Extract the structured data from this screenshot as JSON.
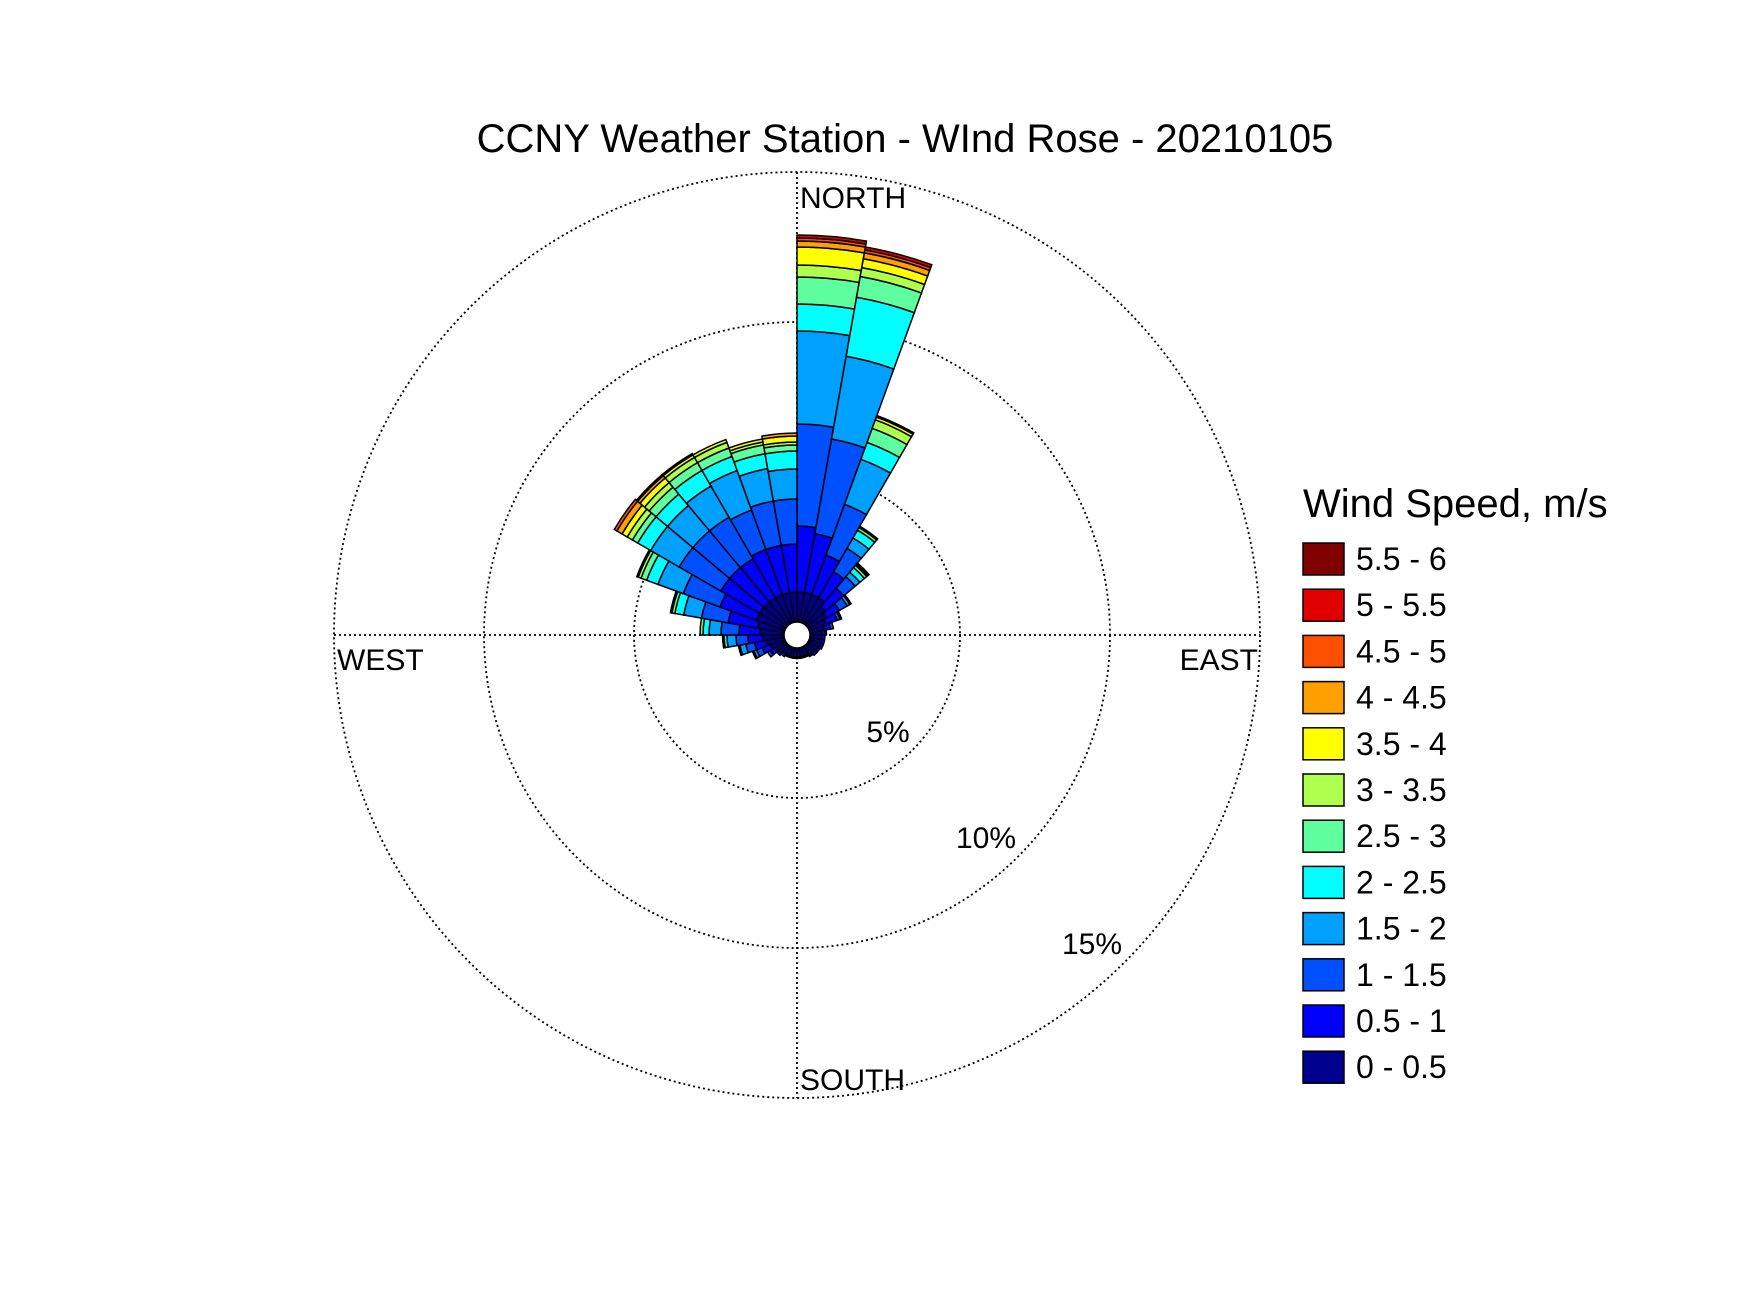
{
  "chart_data": {
    "type": "wind-rose",
    "title": "CCNY Weather Station - WInd Rose - 20210105",
    "direction_labels": {
      "north": "NORTH",
      "east": "EAST",
      "south": "SOUTH",
      "west": "WEST"
    },
    "radial_axis": {
      "unit": "%",
      "max": 15,
      "rings": [
        5,
        10,
        15
      ],
      "ring_labels": [
        "5%",
        "10%",
        "15%"
      ]
    },
    "grid": true,
    "legend": {
      "title": "Wind Speed, m/s",
      "placement": "right",
      "bins": [
        {
          "label": "0 - 0.5",
          "color": "#00008f"
        },
        {
          "label": "0.5 - 1",
          "color": "#0000ff"
        },
        {
          "label": "1 - 1.5",
          "color": "#0050ff"
        },
        {
          "label": "1.5 - 2",
          "color": "#00a0ff"
        },
        {
          "label": "2 - 2.5",
          "color": "#00ffff"
        },
        {
          "label": "2.5 - 3",
          "color": "#5fff9f"
        },
        {
          "label": "3 - 3.5",
          "color": "#afff4f"
        },
        {
          "label": "3.5 - 4",
          "color": "#ffff00"
        },
        {
          "label": "4 - 4.5",
          "color": "#ff9f00"
        },
        {
          "label": "4.5 - 5",
          "color": "#ff4f00"
        },
        {
          "label": "5 - 5.5",
          "color": "#e10000"
        },
        {
          "label": "5.5 - 6",
          "color": "#800000"
        }
      ]
    },
    "sector_width_deg": 10,
    "sectors": [
      {
        "direction": 5,
        "freq": [
          1.0,
          2.2,
          3.4,
          3.1,
          0.9,
          0.9,
          0.4,
          0.6,
          0.2,
          0.1,
          0.1,
          0
        ]
      },
      {
        "direction": 15,
        "freq": [
          1.0,
          2.0,
          3.2,
          2.8,
          2.0,
          0.7,
          0.3,
          0.3,
          0.2,
          0.1,
          0.1,
          0
        ]
      },
      {
        "direction": 25,
        "freq": [
          1.0,
          1.4,
          1.8,
          1.6,
          0.6,
          0.5,
          0.3,
          0.1,
          0.05,
          0,
          0,
          0
        ]
      },
      {
        "direction": 35,
        "freq": [
          1.0,
          1.0,
          0.9,
          0.4,
          0.3,
          0.1,
          0.05,
          0,
          0,
          0,
          0,
          0
        ]
      },
      {
        "direction": 45,
        "freq": [
          0.8,
          0.8,
          0.5,
          0.2,
          0.2,
          0.1,
          0.05,
          0.05,
          0,
          0,
          0,
          0
        ]
      },
      {
        "direction": 55,
        "freq": [
          0.7,
          0.5,
          0.3,
          0.1,
          0.05,
          0,
          0,
          0,
          0,
          0,
          0,
          0
        ]
      },
      {
        "direction": 65,
        "freq": [
          0.6,
          0.4,
          0.1,
          0.05,
          0,
          0,
          0,
          0,
          0,
          0,
          0,
          0
        ]
      },
      {
        "direction": 75,
        "freq": [
          0.5,
          0.2,
          0.1,
          0,
          0,
          0,
          0,
          0,
          0,
          0,
          0,
          0
        ]
      },
      {
        "direction": 85,
        "freq": [
          0.4,
          0.1,
          0.05,
          0,
          0,
          0,
          0,
          0,
          0,
          0,
          0,
          0
        ]
      },
      {
        "direction": 95,
        "freq": [
          0.4,
          0.1,
          0,
          0,
          0,
          0,
          0,
          0,
          0,
          0,
          0,
          0
        ]
      },
      {
        "direction": 105,
        "freq": [
          0.4,
          0.1,
          0,
          0,
          0,
          0,
          0,
          0,
          0,
          0,
          0,
          0
        ]
      },
      {
        "direction": 115,
        "freq": [
          0.4,
          0.1,
          0,
          0,
          0,
          0,
          0,
          0,
          0,
          0,
          0,
          0
        ]
      },
      {
        "direction": 125,
        "freq": [
          0.35,
          0.1,
          0,
          0,
          0,
          0,
          0,
          0,
          0,
          0,
          0,
          0
        ]
      },
      {
        "direction": 135,
        "freq": [
          0.35,
          0.1,
          0,
          0,
          0,
          0,
          0,
          0,
          0,
          0,
          0,
          0
        ]
      },
      {
        "direction": 145,
        "freq": [
          0.35,
          0.05,
          0,
          0,
          0,
          0,
          0,
          0,
          0,
          0,
          0,
          0
        ]
      },
      {
        "direction": 155,
        "freq": [
          0.3,
          0.05,
          0,
          0,
          0,
          0,
          0,
          0,
          0,
          0,
          0,
          0
        ]
      },
      {
        "direction": 165,
        "freq": [
          0.3,
          0.05,
          0,
          0,
          0,
          0,
          0,
          0,
          0,
          0,
          0,
          0
        ]
      },
      {
        "direction": 175,
        "freq": [
          0.3,
          0.05,
          0,
          0,
          0,
          0,
          0,
          0,
          0,
          0,
          0,
          0
        ]
      },
      {
        "direction": 185,
        "freq": [
          0.3,
          0.05,
          0,
          0,
          0,
          0,
          0,
          0,
          0,
          0,
          0,
          0
        ]
      },
      {
        "direction": 195,
        "freq": [
          0.3,
          0.05,
          0,
          0,
          0,
          0,
          0,
          0,
          0,
          0,
          0,
          0
        ]
      },
      {
        "direction": 205,
        "freq": [
          0.3,
          0.05,
          0,
          0,
          0,
          0,
          0,
          0,
          0,
          0,
          0,
          0
        ]
      },
      {
        "direction": 215,
        "freq": [
          0.3,
          0.1,
          0,
          0,
          0,
          0,
          0,
          0,
          0,
          0,
          0,
          0
        ]
      },
      {
        "direction": 225,
        "freq": [
          0.35,
          0.1,
          0,
          0,
          0,
          0,
          0,
          0,
          0,
          0,
          0,
          0
        ]
      },
      {
        "direction": 235,
        "freq": [
          0.4,
          0.2,
          0.1,
          0,
          0,
          0,
          0,
          0,
          0,
          0,
          0,
          0
        ]
      },
      {
        "direction": 245,
        "freq": [
          0.5,
          0.3,
          0.2,
          0.1,
          0.05,
          0,
          0,
          0,
          0,
          0,
          0,
          0
        ]
      },
      {
        "direction": 255,
        "freq": [
          0.6,
          0.4,
          0.3,
          0.2,
          0.05,
          0,
          0,
          0,
          0,
          0,
          0,
          0
        ]
      },
      {
        "direction": 265,
        "freq": [
          0.7,
          0.5,
          0.4,
          0.3,
          0.1,
          0.05,
          0,
          0,
          0,
          0,
          0,
          0
        ]
      },
      {
        "direction": 275,
        "freq": [
          0.8,
          0.7,
          0.6,
          0.4,
          0.2,
          0.1,
          0,
          0,
          0,
          0,
          0,
          0
        ]
      },
      {
        "direction": 285,
        "freq": [
          0.9,
          1.0,
          0.9,
          0.6,
          0.3,
          0.1,
          0.05,
          0,
          0,
          0,
          0,
          0
        ]
      },
      {
        "direction": 295,
        "freq": [
          1.0,
          1.3,
          1.3,
          0.9,
          0.4,
          0.2,
          0.1,
          0.05,
          0,
          0,
          0,
          0
        ]
      },
      {
        "direction": 305,
        "freq": [
          1.0,
          1.5,
          1.6,
          1.1,
          0.5,
          0.2,
          0.2,
          0.2,
          0.2,
          0.1,
          0,
          0
        ]
      },
      {
        "direction": 315,
        "freq": [
          1.0,
          1.5,
          1.6,
          1.1,
          0.5,
          0.3,
          0.2,
          0.2,
          0.1,
          0.05,
          0,
          0
        ]
      },
      {
        "direction": 325,
        "freq": [
          1.0,
          1.5,
          1.6,
          1.2,
          0.6,
          0.3,
          0.2,
          0.1,
          0.05,
          0,
          0,
          0
        ]
      },
      {
        "direction": 335,
        "freq": [
          1.0,
          1.6,
          1.4,
          1.4,
          0.5,
          0.3,
          0.2,
          0.1,
          0,
          0,
          0,
          0
        ]
      },
      {
        "direction": 345,
        "freq": [
          1.0,
          1.6,
          1.5,
          1.1,
          0.5,
          0.3,
          0.1,
          0.1,
          0,
          0,
          0,
          0
        ]
      },
      {
        "direction": 355,
        "freq": [
          1.0,
          1.6,
          1.5,
          1.0,
          0.6,
          0.2,
          0.1,
          0.2,
          0.1,
          0,
          0,
          0
        ]
      }
    ]
  }
}
